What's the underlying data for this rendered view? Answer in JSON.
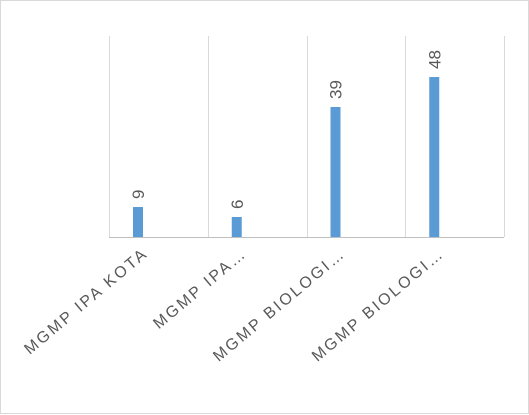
{
  "chart_data": {
    "type": "bar",
    "categories": [
      "MGMP IPA KOTA",
      "MGMP IPA…",
      "MGMP BIOLOGI…",
      "MGMP BIOLOGI…"
    ],
    "values": [
      9,
      6,
      39,
      48
    ],
    "title": "",
    "xlabel": "",
    "ylabel": "",
    "ylim": [
      0,
      60
    ],
    "grid": "vertical category separators",
    "legend": "none",
    "data_labels": true,
    "colors": {
      "bar": "#5b9bd5",
      "gridline": "#d9d9d9",
      "axis": "#bfbfbf",
      "text": "#595959"
    }
  }
}
